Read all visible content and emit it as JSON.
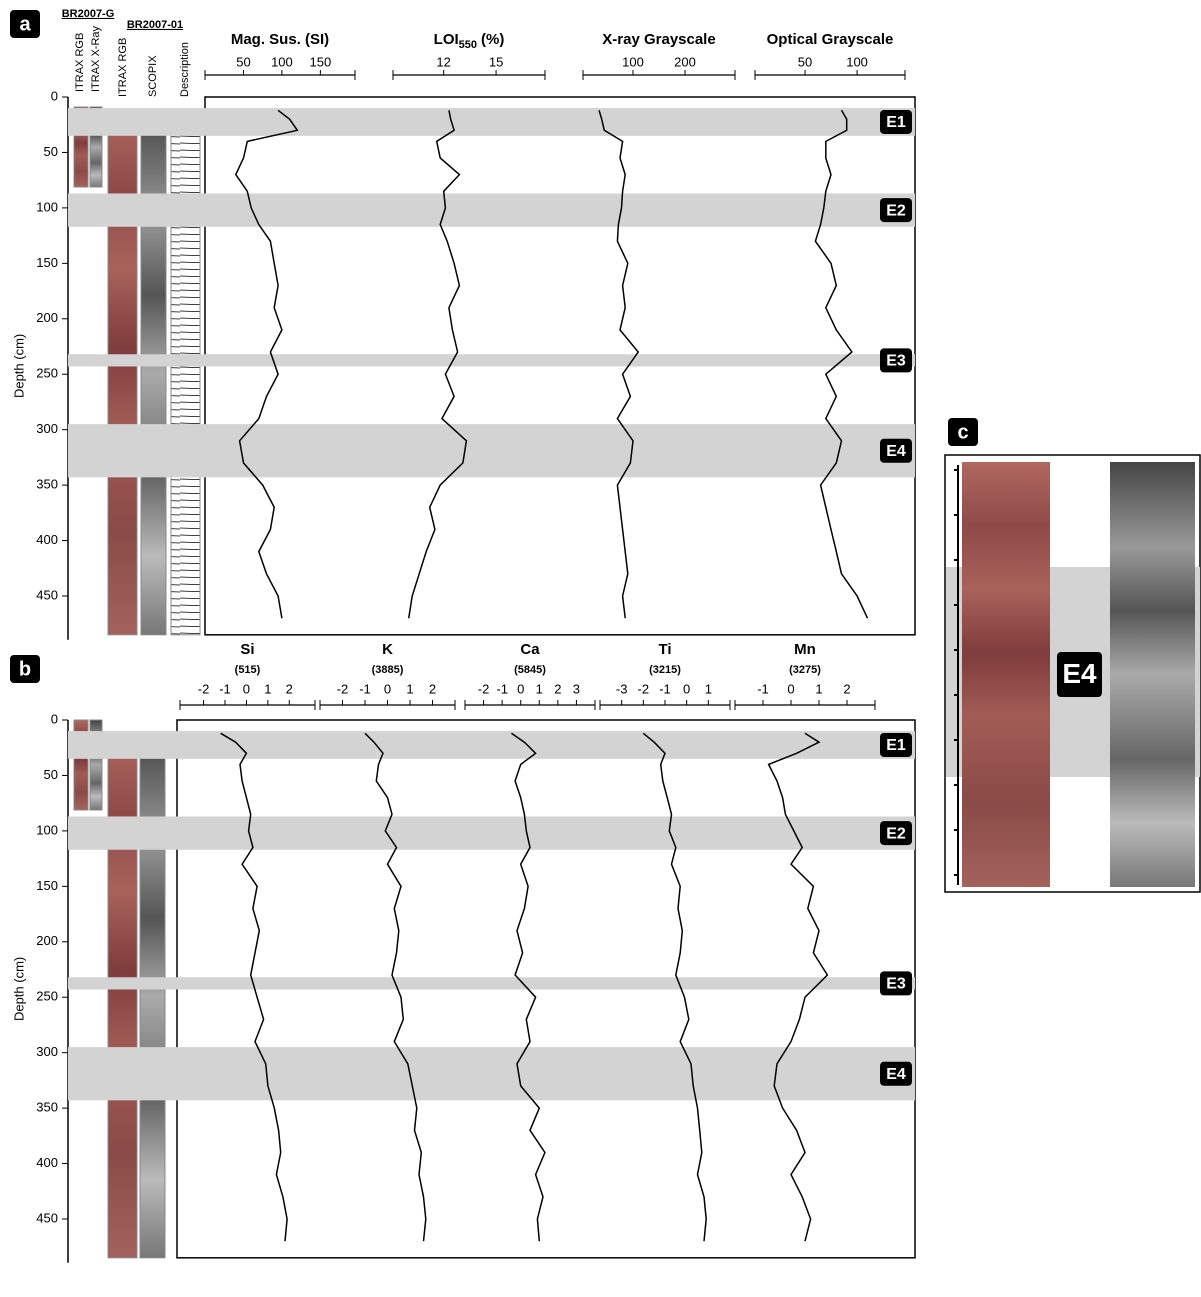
{
  "chart_data": [
    {
      "type": "line",
      "panel": "a",
      "y_label": "Depth (cm)",
      "ylim": [
        0,
        485
      ],
      "yticks": [
        0,
        50,
        100,
        150,
        200,
        250,
        300,
        350,
        400,
        450
      ],
      "core_groups": [
        {
          "name": "BR2007-G",
          "tracks": [
            "ITRAX RGB",
            "ITRAX X-Ray"
          ]
        },
        {
          "name": "BR2007-01",
          "tracks": [
            "ITRAX RGB",
            "SCOPIX",
            "Description"
          ]
        }
      ],
      "events": [
        {
          "label": "E1",
          "depth_range": [
            10,
            35
          ]
        },
        {
          "label": "E2",
          "depth_range": [
            87,
            117
          ]
        },
        {
          "label": "E3",
          "depth_range": [
            232,
            243
          ]
        },
        {
          "label": "E4",
          "depth_range": [
            295,
            343
          ]
        }
      ],
      "depth": [
        12,
        20,
        30,
        40,
        55,
        70,
        85,
        100,
        115,
        130,
        150,
        170,
        190,
        210,
        230,
        250,
        270,
        290,
        310,
        330,
        350,
        370,
        390,
        410,
        430,
        450,
        470
      ],
      "series": [
        {
          "name": "Mag. Sus. (SI)",
          "color": "#000000",
          "xlim": [
            0,
            195
          ],
          "xticks": [
            50,
            100,
            150
          ],
          "values": [
            95,
            110,
            120,
            55,
            50,
            40,
            55,
            60,
            70,
            85,
            90,
            95,
            90,
            100,
            85,
            95,
            80,
            70,
            45,
            50,
            75,
            90,
            85,
            70,
            80,
            95,
            100
          ]
        },
        {
          "name": "LOI",
          "subscript": "550",
          "unit": "(%)",
          "color": "#000000",
          "xlim": [
            9.1,
            17.8
          ],
          "xticks": [
            12,
            15
          ],
          "values": [
            12.3,
            12.4,
            12.6,
            11.6,
            11.8,
            12.9,
            12.0,
            12.1,
            11.8,
            12.2,
            12.6,
            12.9,
            12.3,
            12.5,
            12.8,
            12.1,
            12.6,
            11.9,
            13.3,
            13.1,
            11.8,
            11.2,
            11.5,
            11.0,
            10.6,
            10.2,
            10.0
          ]
        },
        {
          "name": "X-ray Grayscale",
          "color": "#000000",
          "xlim": [
            4,
            296
          ],
          "xticks": [
            100,
            200
          ],
          "values": [
            35,
            40,
            45,
            80,
            75,
            85,
            80,
            78,
            72,
            70,
            90,
            80,
            85,
            75,
            110,
            80,
            95,
            70,
            100,
            95,
            70,
            75,
            80,
            85,
            90,
            80,
            85
          ]
        },
        {
          "name": "Optical Grayscale",
          "color": "#000000",
          "xlim": [
            2,
            146
          ],
          "xticks": [
            50,
            100
          ],
          "values": [
            85,
            90,
            90,
            70,
            70,
            75,
            70,
            68,
            65,
            60,
            75,
            80,
            70,
            80,
            95,
            70,
            80,
            70,
            85,
            80,
            65,
            70,
            75,
            80,
            85,
            100,
            110
          ]
        }
      ]
    },
    {
      "type": "line",
      "panel": "b",
      "y_label": "Depth (cm)",
      "ylim": [
        0,
        485
      ],
      "yticks": [
        0,
        50,
        100,
        150,
        200,
        250,
        300,
        350,
        400,
        450
      ],
      "events": [
        {
          "label": "E1",
          "depth_range": [
            10,
            35
          ]
        },
        {
          "label": "E2",
          "depth_range": [
            87,
            117
          ]
        },
        {
          "label": "E3",
          "depth_range": [
            232,
            243
          ]
        },
        {
          "label": "E4",
          "depth_range": [
            295,
            343
          ]
        }
      ],
      "depth": [
        12,
        20,
        30,
        40,
        55,
        70,
        85,
        100,
        115,
        130,
        150,
        170,
        190,
        210,
        230,
        250,
        270,
        290,
        310,
        330,
        350,
        370,
        390,
        410,
        430,
        450,
        470
      ],
      "series": [
        {
          "name": "Si",
          "count": "(515)",
          "color": "#000000",
          "xlim": [
            -3.1,
            3.2
          ],
          "xticks": [
            -2,
            -1,
            0,
            1,
            2
          ],
          "values": [
            -1.2,
            -0.5,
            0.0,
            -0.3,
            -0.2,
            0.0,
            0.2,
            0.1,
            0.3,
            -0.2,
            0.5,
            0.3,
            0.6,
            0.4,
            0.2,
            0.5,
            0.8,
            0.4,
            0.9,
            1.0,
            1.3,
            1.5,
            1.6,
            1.4,
            1.7,
            1.9,
            1.8
          ]
        },
        {
          "name": "K",
          "count": "(3885)",
          "color": "#000000",
          "xlim": [
            -3,
            3
          ],
          "xticks": [
            -2,
            -1,
            0,
            1,
            2
          ],
          "values": [
            -1.0,
            -0.6,
            -0.2,
            -0.4,
            -0.5,
            0.0,
            0.2,
            -0.1,
            0.4,
            0.0,
            0.6,
            0.3,
            0.5,
            0.4,
            0.2,
            0.6,
            0.7,
            0.3,
            0.9,
            1.1,
            1.3,
            1.2,
            1.5,
            1.4,
            1.6,
            1.7,
            1.6
          ]
        },
        {
          "name": "Ca",
          "count": "(5845)",
          "color": "#000000",
          "xlim": [
            -3,
            4
          ],
          "xticks": [
            -2,
            -1,
            0,
            1,
            2,
            3
          ],
          "values": [
            -0.5,
            0.2,
            0.8,
            0.0,
            -0.3,
            0.0,
            0.2,
            0.3,
            0.5,
            0.0,
            0.4,
            0.2,
            -0.2,
            0.1,
            -0.3,
            0.8,
            0.3,
            0.5,
            -0.2,
            0.0,
            1.0,
            0.5,
            1.3,
            0.8,
            1.2,
            0.9,
            1.0
          ]
        },
        {
          "name": "Ti",
          "count": "(3215)",
          "color": "#000000",
          "xlim": [
            -4,
            2
          ],
          "xticks": [
            -3,
            -2,
            -1,
            0,
            1
          ],
          "values": [
            -2.0,
            -1.5,
            -1.0,
            -1.2,
            -1.1,
            -0.9,
            -0.7,
            -0.8,
            -0.5,
            -0.7,
            -0.3,
            -0.4,
            -0.2,
            -0.3,
            -0.5,
            -0.1,
            0.1,
            -0.3,
            0.2,
            0.3,
            0.5,
            0.6,
            0.7,
            0.5,
            0.8,
            0.9,
            0.8
          ]
        },
        {
          "name": "Mn",
          "count": "(3275)",
          "color": "#000000",
          "xlim": [
            -2,
            3
          ],
          "xticks": [
            -1,
            0,
            1,
            2
          ],
          "values": [
            0.5,
            1.0,
            0.2,
            -0.8,
            -0.5,
            -0.3,
            -0.2,
            0.1,
            0.4,
            0.0,
            0.8,
            0.6,
            1.0,
            0.8,
            1.3,
            0.5,
            0.3,
            0.0,
            -0.5,
            -0.6,
            -0.3,
            0.2,
            0.5,
            0.0,
            0.4,
            0.7,
            0.5
          ]
        }
      ]
    }
  ],
  "panel_c": {
    "panel": "c",
    "event": "E4"
  }
}
